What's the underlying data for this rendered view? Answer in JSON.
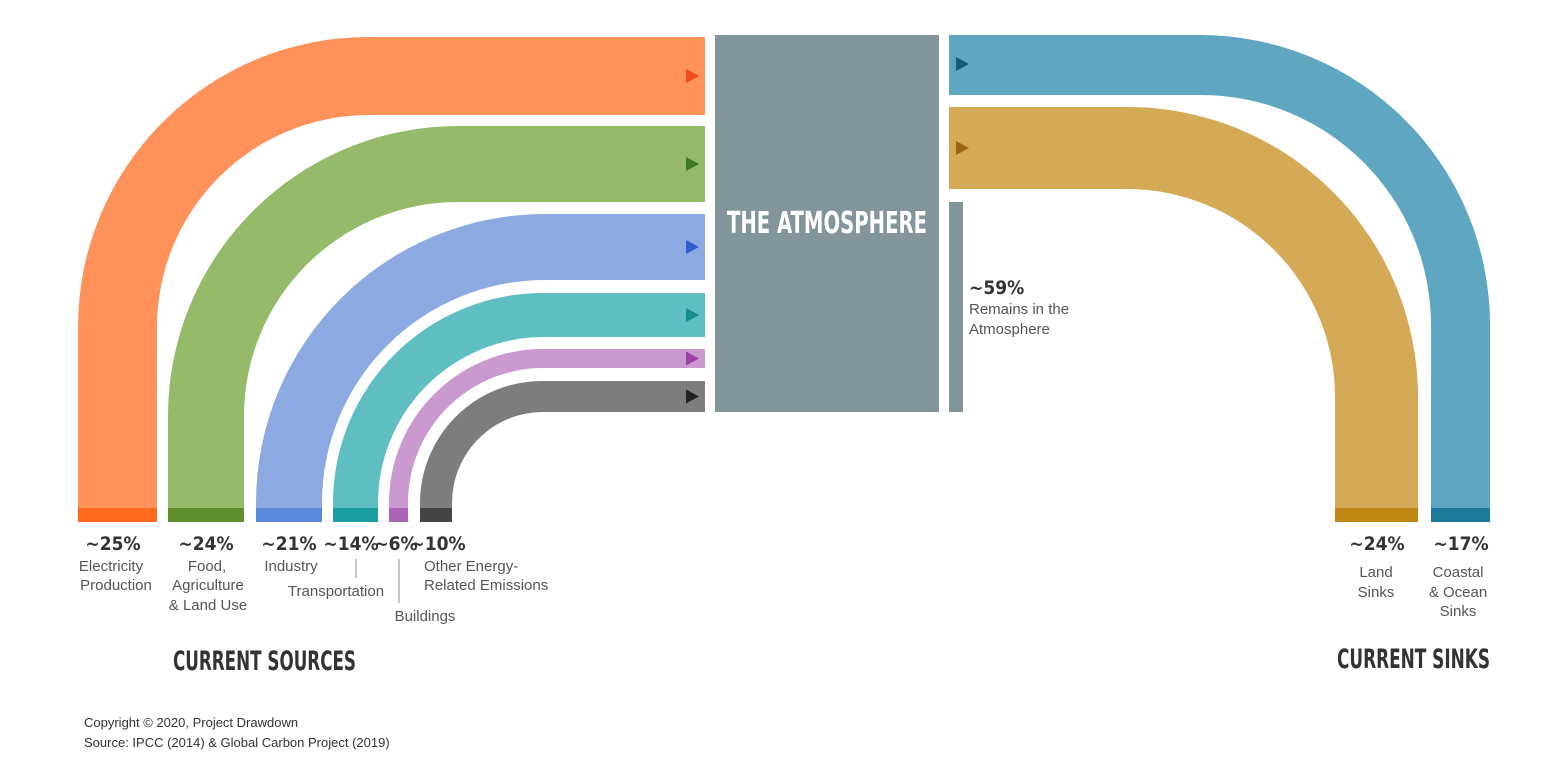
{
  "atmosphere": {
    "title": "THE ATMOSPHERE"
  },
  "headings": {
    "sources": "CURRENT SOURCES",
    "sinks": "CURRENT SINKS"
  },
  "remains": {
    "percent": "~59%",
    "line1": "Remains in the",
    "line2": "Atmosphere"
  },
  "sources": [
    {
      "id": "electricity",
      "percent": "~25%",
      "lines": [
        "Electricity",
        "Production"
      ],
      "color": "#ff925a",
      "base_color": "#ff6a1f",
      "arrow_color": "#f24a1d"
    },
    {
      "id": "food",
      "percent": "~24%",
      "lines": [
        "Food,",
        "Agriculture",
        "& Land Use"
      ],
      "color": "#95ba6a",
      "base_color": "#5e8f2c",
      "arrow_color": "#3e7a1d"
    },
    {
      "id": "industry",
      "percent": "~21%",
      "lines": [
        "Industry"
      ],
      "color": "#8da9e2",
      "base_color": "#5b88d8",
      "arrow_color": "#2f5ed0"
    },
    {
      "id": "transportation",
      "percent": "~14%",
      "lines": [
        "Transportation"
      ],
      "color": "#5ebec2",
      "base_color": "#1a9ea1",
      "arrow_color": "#168a8c"
    },
    {
      "id": "buildings",
      "percent": "~6%",
      "lines": [
        "Buildings"
      ],
      "color": "#c999cf",
      "base_color": "#ab63b6",
      "arrow_color": "#9c3fa8"
    },
    {
      "id": "other",
      "percent": "~10%",
      "lines": [
        "Other Energy-",
        "Related Emissions"
      ],
      "color": "#7d7d7d",
      "base_color": "#444444",
      "arrow_color": "#222222"
    }
  ],
  "sinks": [
    {
      "id": "land",
      "percent": "~24%",
      "lines": [
        "Land",
        "Sinks"
      ],
      "color": "#d5aa57",
      "base_color": "#c08715",
      "arrow_color": "#9a6512"
    },
    {
      "id": "ocean",
      "percent": "~17%",
      "lines": [
        "Coastal",
        "& Ocean",
        "Sinks"
      ],
      "color": "#5fa6c1",
      "base_color": "#1d7a9a",
      "arrow_color": "#165d7c"
    }
  ],
  "colors": {
    "atmosphere": "#82959b"
  },
  "footer": {
    "copyright": "Copyright © 2020, Project Drawdown",
    "source": "Source: IPCC (2014) & Global Carbon Project (2019)"
  }
}
